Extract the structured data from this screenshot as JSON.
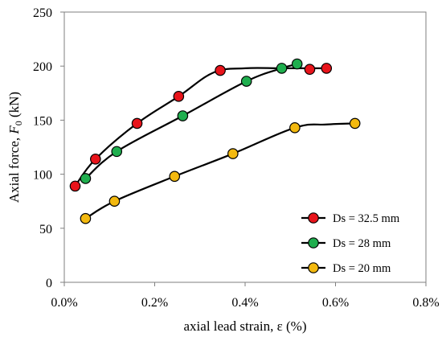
{
  "chart_data": {
    "type": "scatter",
    "xlabel": "axial lead strain,  ε (%)",
    "ylabel_prefix": "Axial force, ",
    "ylabel_symbol": "F",
    "ylabel_subscript": "0",
    "ylabel_suffix": " (kN)",
    "xlim": [
      0,
      0.8
    ],
    "ylim": [
      0,
      250
    ],
    "xticks": [
      0,
      0.2,
      0.4,
      0.6,
      0.8
    ],
    "xtick_labels": [
      "0.0%",
      "0.2%",
      "0.4%",
      "0.6%",
      "0.8%"
    ],
    "yticks": [
      0,
      50,
      100,
      150,
      200,
      250
    ],
    "ytick_labels": [
      "0",
      "50",
      "100",
      "150",
      "200",
      "250"
    ],
    "grid": false,
    "legend_position": "bottom-right",
    "series": [
      {
        "name": "Ds = 32.5 mm",
        "color": "#e8141b",
        "points": [
          [
            0.024,
            89
          ],
          [
            0.069,
            114
          ],
          [
            0.161,
            147
          ],
          [
            0.253,
            172
          ],
          [
            0.345,
            196
          ],
          [
            0.543,
            197
          ],
          [
            0.58,
            198
          ]
        ],
        "curve": [
          [
            0.024,
            89
          ],
          [
            0.069,
            114
          ],
          [
            0.161,
            147
          ],
          [
            0.253,
            172
          ],
          [
            0.33,
            194
          ],
          [
            0.4,
            198
          ],
          [
            0.48,
            198
          ],
          [
            0.58,
            198
          ]
        ]
      },
      {
        "name": "Ds = 28 mm",
        "color": "#1fae4e",
        "points": [
          [
            0.047,
            96
          ],
          [
            0.116,
            121
          ],
          [
            0.262,
            154
          ],
          [
            0.403,
            186
          ],
          [
            0.481,
            198
          ],
          [
            0.515,
            202
          ]
        ],
        "curve": [
          [
            0.047,
            96
          ],
          [
            0.116,
            121
          ],
          [
            0.262,
            154
          ],
          [
            0.403,
            186
          ],
          [
            0.481,
            198
          ],
          [
            0.515,
            202
          ]
        ]
      },
      {
        "name": "Ds = 20 mm",
        "color": "#f3b90f",
        "points": [
          [
            0.047,
            59
          ],
          [
            0.111,
            75
          ],
          [
            0.244,
            98
          ],
          [
            0.373,
            119
          ],
          [
            0.51,
            143
          ],
          [
            0.643,
            147
          ]
        ],
        "curve": [
          [
            0.047,
            59
          ],
          [
            0.111,
            75
          ],
          [
            0.244,
            98
          ],
          [
            0.373,
            119
          ],
          [
            0.51,
            143
          ],
          [
            0.58,
            146
          ],
          [
            0.643,
            147
          ]
        ]
      }
    ]
  }
}
